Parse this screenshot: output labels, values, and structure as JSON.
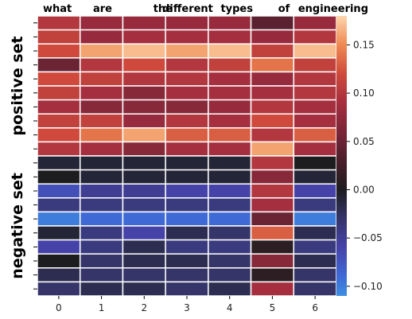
{
  "chart_data": {
    "type": "heatmap",
    "x_tick_labels": [
      "0",
      "1",
      "2",
      "3",
      "4",
      "5",
      "6"
    ],
    "top_labels": [
      "what",
      "are",
      "the",
      "different",
      "types",
      "of",
      "engineering"
    ],
    "group_labels": [
      "positive set",
      "negative set"
    ],
    "group_sizes": [
      10,
      10
    ],
    "values": [
      [
        0.1,
        0.08,
        0.08,
        0.08,
        0.08,
        0.04,
        0.08
      ],
      [
        0.11,
        0.08,
        0.09,
        0.09,
        0.09,
        0.08,
        0.1
      ],
      [
        0.12,
        0.16,
        0.17,
        0.16,
        0.17,
        0.11,
        0.17
      ],
      [
        0.05,
        0.1,
        0.12,
        0.1,
        0.11,
        0.14,
        0.11
      ],
      [
        0.12,
        0.11,
        0.1,
        0.1,
        0.09,
        0.08,
        0.1
      ],
      [
        0.11,
        0.09,
        0.07,
        0.09,
        0.09,
        0.09,
        0.1
      ],
      [
        0.09,
        0.07,
        0.07,
        0.07,
        0.08,
        0.1,
        0.09
      ],
      [
        0.11,
        0.11,
        0.08,
        0.1,
        0.09,
        0.12,
        0.09
      ],
      [
        0.12,
        0.14,
        0.16,
        0.13,
        0.13,
        0.1,
        0.13
      ],
      [
        0.1,
        0.09,
        0.07,
        0.09,
        0.09,
        0.16,
        0.09
      ],
      [
        -0.01,
        -0.01,
        -0.01,
        -0.01,
        -0.01,
        0.1,
        0.0
      ],
      [
        0.0,
        -0.01,
        -0.01,
        -0.01,
        -0.01,
        0.07,
        -0.01
      ],
      [
        -0.07,
        -0.05,
        -0.05,
        -0.06,
        -0.06,
        0.1,
        -0.06
      ],
      [
        -0.04,
        -0.04,
        -0.04,
        -0.04,
        -0.04,
        0.09,
        -0.04
      ],
      [
        -0.1,
        -0.09,
        -0.09,
        -0.09,
        -0.09,
        0.05,
        -0.1
      ],
      [
        -0.01,
        -0.04,
        -0.06,
        -0.02,
        -0.03,
        0.13,
        -0.02
      ],
      [
        -0.06,
        -0.04,
        -0.02,
        -0.04,
        -0.04,
        0.01,
        -0.04
      ],
      [
        0.0,
        -0.03,
        -0.02,
        -0.02,
        -0.03,
        0.07,
        -0.02
      ],
      [
        -0.02,
        -0.03,
        -0.03,
        -0.03,
        -0.03,
        0.01,
        -0.03
      ],
      [
        -0.03,
        -0.02,
        -0.02,
        -0.03,
        -0.02,
        0.09,
        -0.03
      ]
    ],
    "colorbar": {
      "min": -0.11,
      "max": 0.18,
      "ticks": [
        -0.1,
        -0.05,
        0.0,
        0.05,
        0.1,
        0.15
      ],
      "tick_labels": [
        "−0.10",
        "−0.05",
        "0.00",
        "0.05",
        "0.10",
        "0.15"
      ],
      "colormap": "icefire",
      "colormap_stops": [
        [
          -0.11,
          "#3d8fe0"
        ],
        [
          -0.09,
          "#3f6ad6"
        ],
        [
          -0.06,
          "#4543a8"
        ],
        [
          -0.03,
          "#35356a"
        ],
        [
          0.0,
          "#1d1d1f"
        ],
        [
          0.03,
          "#4a1f2c"
        ],
        [
          0.06,
          "#7a2638"
        ],
        [
          0.09,
          "#a52e3f"
        ],
        [
          0.12,
          "#cf4a3c"
        ],
        [
          0.15,
          "#ee8a52"
        ],
        [
          0.18,
          "#fdd5ad"
        ]
      ]
    }
  }
}
